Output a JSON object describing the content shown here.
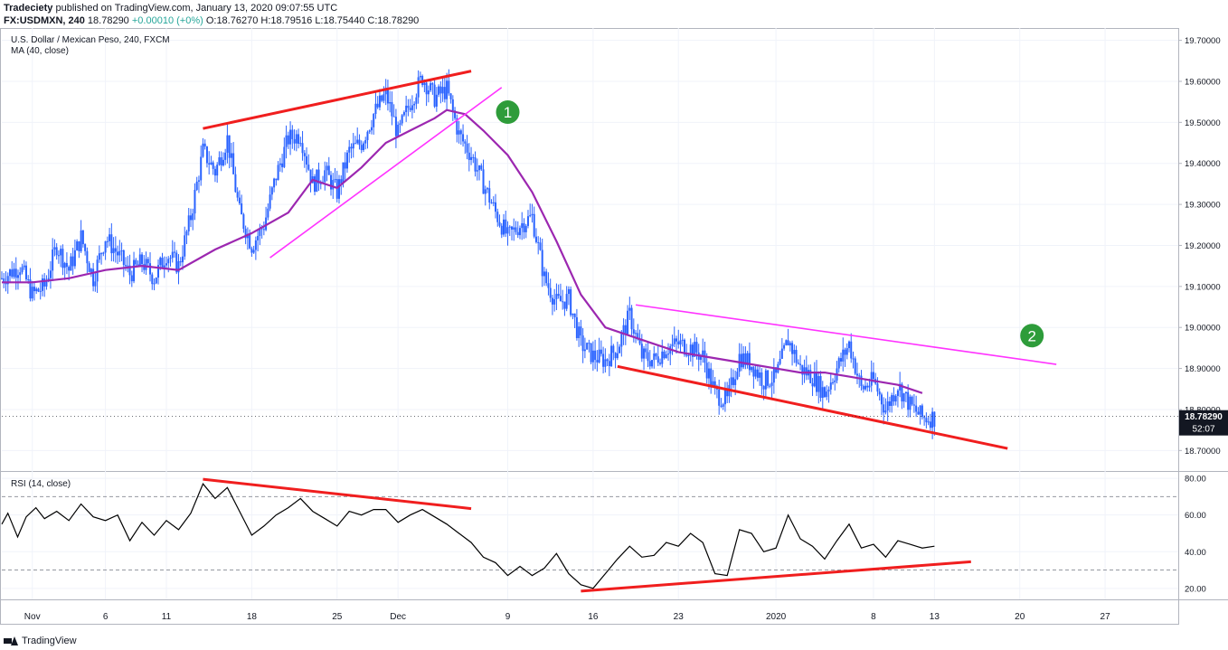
{
  "header": {
    "publisher": "Tradeciety",
    "published_text": "published on TradingView.com, January 13, 2020 09:07:55 UTC",
    "ticker": "FX:USDMXN, 240",
    "last": "18.78290",
    "change": "+0.00010 (+0%)",
    "ohlc": "O:18.76270 H:18.79516 L:18.75440 C:18.78290"
  },
  "legends": {
    "price_title": "U.S. Dollar / Mexican Peso, 240, FXCM",
    "ma_title": "MA (40, close)",
    "rsi_title": "RSI (14, close)"
  },
  "footer": {
    "brand": "TradingView"
  },
  "colors": {
    "candle": "#2962ff",
    "ma": "#9c27b0",
    "trend_red": "#f01e1e",
    "trend_magenta": "#ff33ff",
    "rsi": "#000000",
    "marker": "#2e9c3a",
    "grid": "#f0f3fa",
    "axis_text": "#131722"
  },
  "chart_data": [
    {
      "type": "candlestick",
      "title": "U.S. Dollar / Mexican Peso, 240, FXCM",
      "x_labels": [
        "Nov",
        "6",
        "11",
        "18",
        "25",
        "Dec",
        "9",
        "16",
        "23",
        "2020",
        "8",
        "13",
        "20",
        "27"
      ],
      "x_label_days": [
        0,
        6,
        11,
        18,
        25,
        30,
        39,
        46,
        53,
        61,
        69,
        74,
        81,
        88
      ],
      "x_range_days": [
        -2.5,
        94
      ],
      "ylim": [
        18.65,
        19.73
      ],
      "y_ticks": [
        "18.70000",
        "18.80000",
        "18.90000",
        "19.00000",
        "19.10000",
        "19.20000",
        "19.30000",
        "19.40000",
        "19.50000",
        "19.60000",
        "19.70000"
      ],
      "price_path": [
        [
          -2.5,
          19.12
        ],
        [
          -1,
          19.15
        ],
        [
          0,
          19.08
        ],
        [
          1,
          19.1
        ],
        [
          2,
          19.2
        ],
        [
          3,
          19.14
        ],
        [
          4,
          19.22
        ],
        [
          5,
          19.12
        ],
        [
          6,
          19.22
        ],
        [
          7,
          19.18
        ],
        [
          8,
          19.13
        ],
        [
          9,
          19.16
        ],
        [
          10,
          19.12
        ],
        [
          11,
          19.18
        ],
        [
          12,
          19.15
        ],
        [
          13,
          19.27
        ],
        [
          14,
          19.43
        ],
        [
          15,
          19.38
        ],
        [
          16,
          19.46
        ],
        [
          17,
          19.28
        ],
        [
          18,
          19.2
        ],
        [
          19,
          19.25
        ],
        [
          20,
          19.37
        ],
        [
          21,
          19.46
        ],
        [
          22,
          19.47
        ],
        [
          23,
          19.35
        ],
        [
          24,
          19.38
        ],
        [
          25,
          19.33
        ],
        [
          26,
          19.43
        ],
        [
          27,
          19.45
        ],
        [
          28,
          19.52
        ],
        [
          29,
          19.57
        ],
        [
          30,
          19.47
        ],
        [
          31,
          19.55
        ],
        [
          32,
          19.61
        ],
        [
          33,
          19.56
        ],
        [
          34,
          19.58
        ],
        [
          35,
          19.47
        ],
        [
          36,
          19.42
        ],
        [
          37,
          19.35
        ],
        [
          38,
          19.28
        ],
        [
          39,
          19.22
        ],
        [
          40,
          19.25
        ],
        [
          41,
          19.27
        ],
        [
          42,
          19.12
        ],
        [
          43,
          19.06
        ],
        [
          44,
          19.07
        ],
        [
          45,
          18.96
        ],
        [
          46,
          18.93
        ],
        [
          47,
          18.92
        ],
        [
          48,
          18.95
        ],
        [
          49,
          19.03
        ],
        [
          50,
          18.93
        ],
        [
          51,
          18.92
        ],
        [
          52,
          18.95
        ],
        [
          53,
          18.96
        ],
        [
          54,
          18.95
        ],
        [
          55,
          18.93
        ],
        [
          56,
          18.84
        ],
        [
          57,
          18.82
        ],
        [
          58,
          18.93
        ],
        [
          59,
          18.91
        ],
        [
          60,
          18.87
        ],
        [
          61,
          18.88
        ],
        [
          62,
          18.97
        ],
        [
          63,
          18.9
        ],
        [
          64,
          18.88
        ],
        [
          65,
          18.84
        ],
        [
          66,
          18.9
        ],
        [
          67,
          18.96
        ],
        [
          68,
          18.85
        ],
        [
          69,
          18.87
        ],
        [
          70,
          18.8
        ],
        [
          71,
          18.86
        ],
        [
          72,
          18.81
        ],
        [
          73,
          18.78
        ],
        [
          74,
          18.78
        ]
      ],
      "ma_path": [
        [
          -2.5,
          19.11
        ],
        [
          0,
          19.11
        ],
        [
          3,
          19.12
        ],
        [
          6,
          19.14
        ],
        [
          9,
          19.15
        ],
        [
          12,
          19.14
        ],
        [
          15,
          19.19
        ],
        [
          18,
          19.23
        ],
        [
          21,
          19.28
        ],
        [
          23,
          19.36
        ],
        [
          25,
          19.34
        ],
        [
          27,
          19.39
        ],
        [
          29,
          19.45
        ],
        [
          31,
          19.48
        ],
        [
          33,
          19.51
        ],
        [
          34,
          19.53
        ],
        [
          35.5,
          19.52
        ],
        [
          37,
          19.48
        ],
        [
          39,
          19.42
        ],
        [
          41,
          19.33
        ],
        [
          43,
          19.21
        ],
        [
          45,
          19.08
        ],
        [
          47,
          19.0
        ],
        [
          49,
          18.98
        ],
        [
          51,
          18.96
        ],
        [
          53,
          18.94
        ],
        [
          55,
          18.93
        ],
        [
          57,
          18.92
        ],
        [
          59,
          18.91
        ],
        [
          61,
          18.9
        ],
        [
          63,
          18.89
        ],
        [
          65,
          18.89
        ],
        [
          67,
          18.88
        ],
        [
          69,
          18.87
        ],
        [
          71,
          18.86
        ],
        [
          73,
          18.84
        ]
      ],
      "trendlines": [
        {
          "name": "upper-red-rising",
          "color": "red",
          "from": [
            14,
            19.485
          ],
          "to": [
            36,
            19.625
          ]
        },
        {
          "name": "lower-magenta-rising",
          "color": "magenta",
          "from": [
            19.5,
            19.17
          ],
          "to": [
            38.5,
            19.585
          ]
        },
        {
          "name": "lower-red-falling",
          "color": "red",
          "from": [
            48,
            18.905
          ],
          "to": [
            80,
            18.705
          ]
        },
        {
          "name": "upper-magenta-falling",
          "color": "magenta",
          "from": [
            49.5,
            19.055
          ],
          "to": [
            84,
            18.91
          ]
        }
      ],
      "markers": [
        {
          "label": "1",
          "day": 39,
          "value": 19.525
        },
        {
          "label": "2",
          "day": 82,
          "value": 18.98
        }
      ],
      "price_label": "18.78290",
      "countdown_label": "52:07"
    },
    {
      "type": "line",
      "title": "RSI (14, close)",
      "ylim": [
        14,
        84
      ],
      "y_ticks": [
        "20.00",
        "40.00",
        "60.00",
        "80.00"
      ],
      "levels": [
        30,
        70
      ],
      "series": [
        [
          -2.5,
          55
        ],
        [
          -2,
          61
        ],
        [
          -1.2,
          48
        ],
        [
          -0.5,
          59
        ],
        [
          0.3,
          64
        ],
        [
          1,
          58
        ],
        [
          2,
          62
        ],
        [
          3,
          57
        ],
        [
          4,
          66
        ],
        [
          5,
          59
        ],
        [
          6,
          57
        ],
        [
          7,
          60
        ],
        [
          8,
          46
        ],
        [
          9,
          56
        ],
        [
          10,
          49
        ],
        [
          11,
          57
        ],
        [
          12,
          52
        ],
        [
          13,
          61
        ],
        [
          14,
          77
        ],
        [
          15,
          69
        ],
        [
          16,
          75
        ],
        [
          17,
          62
        ],
        [
          18,
          49
        ],
        [
          19,
          54
        ],
        [
          20,
          60
        ],
        [
          21,
          64
        ],
        [
          22,
          69
        ],
        [
          23,
          62
        ],
        [
          24,
          58
        ],
        [
          25,
          54
        ],
        [
          26,
          62
        ],
        [
          27,
          60
        ],
        [
          28,
          63
        ],
        [
          29,
          63
        ],
        [
          30,
          56
        ],
        [
          31,
          60
        ],
        [
          32,
          63
        ],
        [
          33,
          59
        ],
        [
          34,
          55
        ],
        [
          35,
          50
        ],
        [
          36,
          45
        ],
        [
          37,
          37
        ],
        [
          38,
          34
        ],
        [
          39,
          27
        ],
        [
          40,
          32
        ],
        [
          41,
          27
        ],
        [
          42,
          31
        ],
        [
          43,
          39
        ],
        [
          44,
          28
        ],
        [
          45,
          22
        ],
        [
          46,
          20
        ],
        [
          47,
          28
        ],
        [
          48,
          36
        ],
        [
          49,
          43
        ],
        [
          50,
          37
        ],
        [
          51,
          38
        ],
        [
          52,
          45
        ],
        [
          53,
          43
        ],
        [
          54,
          50
        ],
        [
          55,
          45
        ],
        [
          56,
          28
        ],
        [
          57,
          27
        ],
        [
          58,
          52
        ],
        [
          59,
          50
        ],
        [
          60,
          40
        ],
        [
          61,
          42
        ],
        [
          62,
          60
        ],
        [
          63,
          47
        ],
        [
          64,
          43
        ],
        [
          65,
          36
        ],
        [
          66,
          46
        ],
        [
          67,
          55
        ],
        [
          68,
          42
        ],
        [
          69,
          44
        ],
        [
          70,
          37
        ],
        [
          71,
          46
        ],
        [
          72,
          44
        ],
        [
          73,
          42
        ],
        [
          74,
          43
        ]
      ],
      "trendlines": [
        {
          "name": "rsi-red-falling",
          "color": "red",
          "from": [
            14,
            79.5
          ],
          "to": [
            36,
            63.5
          ]
        },
        {
          "name": "rsi-red-rising",
          "color": "red",
          "from": [
            45,
            18.5
          ],
          "to": [
            77,
            34.5
          ]
        }
      ]
    }
  ]
}
